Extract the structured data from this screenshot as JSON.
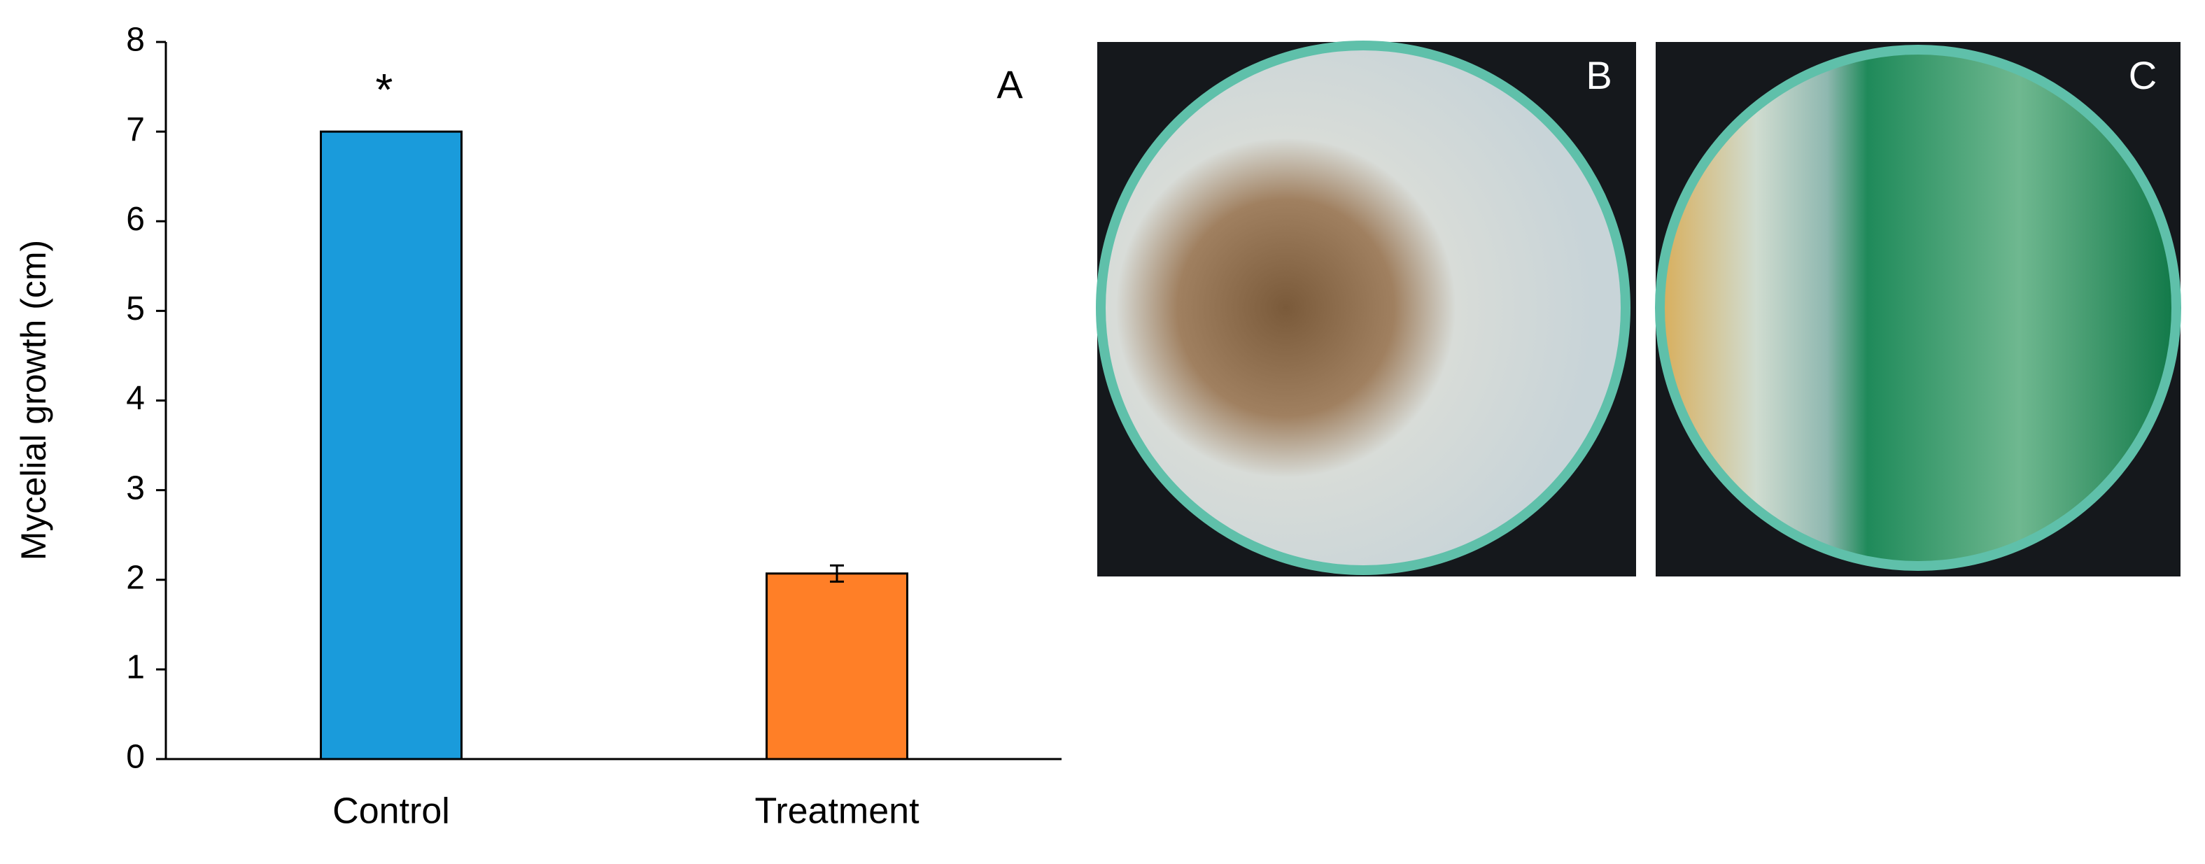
{
  "chart_data": {
    "type": "bar",
    "ylabel": "Mycelial growth (cm)",
    "panel_label": "A",
    "categories": [
      "Control",
      "Treatment"
    ],
    "values": [
      7,
      2.07
    ],
    "errors": [
      0,
      0.09
    ],
    "colors": [
      "#1a9bdb",
      "#ff7f27"
    ],
    "annotations": [
      "*",
      null
    ],
    "ylim": [
      0,
      8
    ],
    "yticks": [
      0,
      1,
      2,
      3,
      4,
      5,
      6,
      7,
      8
    ]
  },
  "photos": [
    {
      "label": "B"
    },
    {
      "label": "C"
    }
  ]
}
